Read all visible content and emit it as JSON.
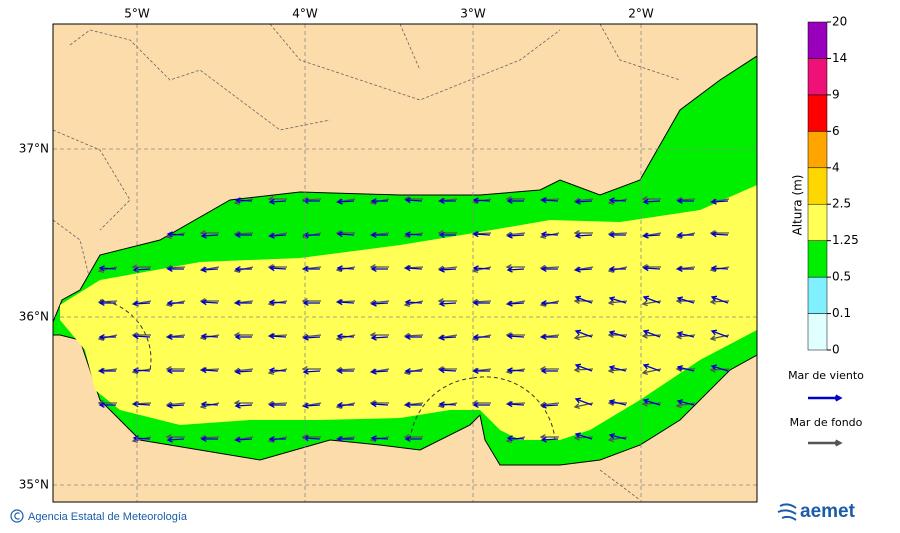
{
  "map": {
    "lon_labels": [
      "5°W",
      "4°W",
      "3°W",
      "2°W"
    ],
    "lat_labels": [
      "37°N",
      "36°N",
      "35°N"
    ],
    "colorbar": {
      "title": "Altura (m)",
      "ticks": [
        0,
        0.1,
        0.5,
        1.25,
        2.5,
        4,
        6,
        9,
        14,
        20
      ],
      "colors": [
        "#e0ffff",
        "#80f0ff",
        "#00ee00",
        "#ffff55",
        "#ffd700",
        "#ffa500",
        "#ff0000",
        "#ee1177",
        "#9900bb"
      ]
    },
    "legend": [
      {
        "label": "Mar de viento",
        "color": "#0000cc"
      },
      {
        "label": "Mar de fondo",
        "color": "#555555"
      }
    ]
  },
  "footer": {
    "credit": "Agencia Estatal de Meteorología",
    "logo": "aemet"
  }
}
